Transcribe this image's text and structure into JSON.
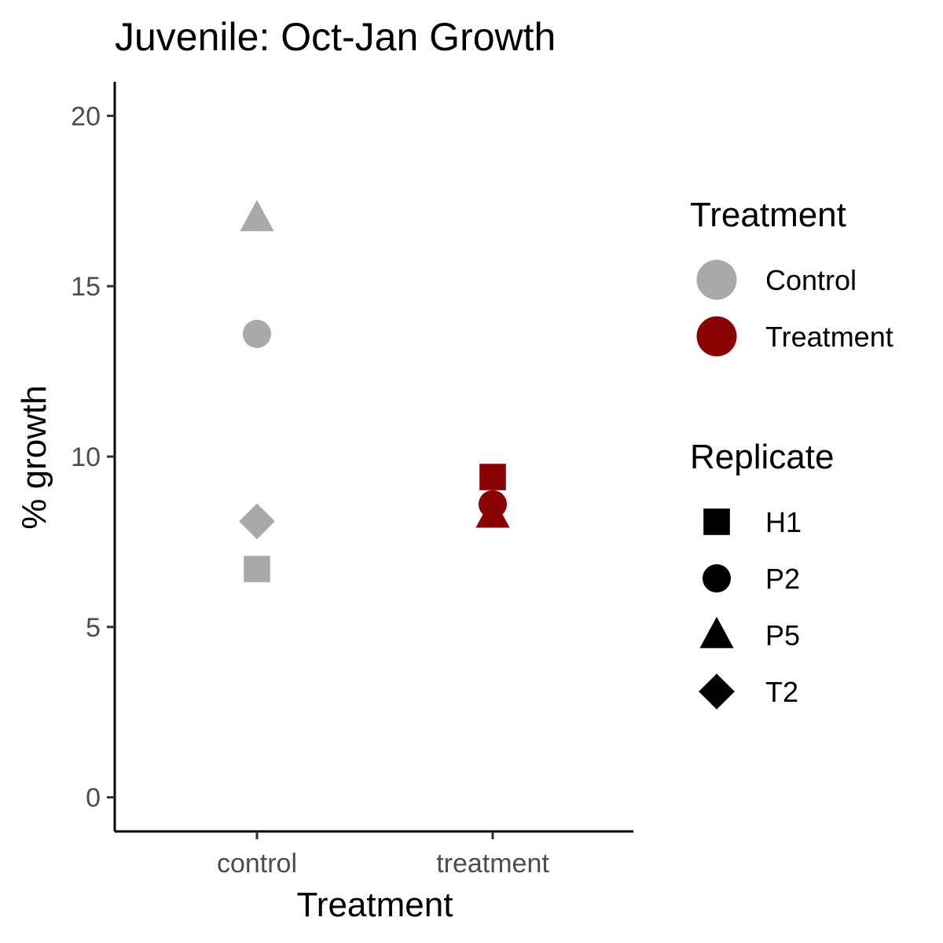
{
  "chart_data": {
    "type": "scatter",
    "title": "Juvenile: Oct-Jan Growth",
    "xlabel": "Treatment",
    "ylabel": "% growth",
    "categories": [
      "control",
      "treatment"
    ],
    "ylim": [
      -1,
      21
    ],
    "yticks": [
      0,
      5,
      10,
      15,
      20
    ],
    "grid": false,
    "points": [
      {
        "x": "control",
        "y": 17.0,
        "treatment": "Control",
        "replicate": "P5"
      },
      {
        "x": "control",
        "y": 13.6,
        "treatment": "Control",
        "replicate": "P2"
      },
      {
        "x": "control",
        "y": 8.1,
        "treatment": "Control",
        "replicate": "T2"
      },
      {
        "x": "control",
        "y": 6.7,
        "treatment": "Control",
        "replicate": "H1"
      },
      {
        "x": "treatment",
        "y": 9.4,
        "treatment": "Treatment",
        "replicate": "H1"
      },
      {
        "x": "treatment",
        "y": 8.6,
        "treatment": "Treatment",
        "replicate": "P2"
      },
      {
        "x": "treatment",
        "y": 8.3,
        "treatment": "Treatment",
        "replicate": "P5"
      }
    ],
    "legends": {
      "placement": "right",
      "color": {
        "title": "Treatment",
        "items": [
          {
            "label": "Control",
            "color": "#A9A9A9"
          },
          {
            "label": "Treatment",
            "color": "#8B0000"
          }
        ]
      },
      "shape": {
        "title": "Replicate",
        "items": [
          {
            "label": "H1",
            "shape": "square"
          },
          {
            "label": "P2",
            "shape": "circle"
          },
          {
            "label": "P5",
            "shape": "triangle"
          },
          {
            "label": "T2",
            "shape": "diamond"
          }
        ]
      }
    }
  }
}
